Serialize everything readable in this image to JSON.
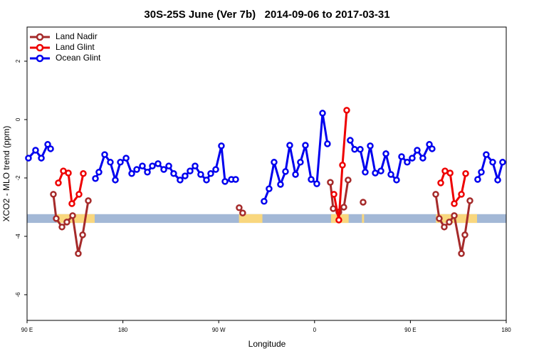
{
  "chart_data": {
    "type": "line",
    "title": "30S-25S June (Ver 7b)   2014-09-06 to 2017-03-31",
    "x_label": "Longitude",
    "y_label": "XCO2 - MLO trend (ppm)",
    "xlim": [
      90,
      540
    ],
    "ylim": [
      -6.88,
      3.17
    ],
    "xticks": [
      {
        "value": 90,
        "label": "90 E"
      },
      180,
      {
        "value": 270,
        "label": "90 W"
      },
      {
        "value": 360,
        "label": "0"
      },
      {
        "value": 450,
        "label": "90 E"
      },
      {
        "value": 540,
        "label": "180"
      }
    ],
    "yticks": [
      2,
      0,
      -2,
      -4,
      -6
    ],
    "legend": "top-left",
    "band": {
      "ylim": [
        -3.24,
        -3.54
      ],
      "color": "#a3b8d6",
      "highlight_color": "#f9d77e",
      "highlights": [
        [
          118,
          153.5
        ],
        [
          289,
          311
        ],
        [
          375.5,
          392
        ],
        [
          404.5,
          406.5
        ],
        [
          474,
          512.6
        ]
      ]
    },
    "series": [
      {
        "name": "Land Nadir",
        "color": "#a52a2a",
        "x": [
          114.7,
          117.4,
          122.8,
          127.4,
          132.8,
          138.1,
          142.2,
          147.5,
          null,
          289.2,
          292.5,
          null,
          374.8,
          377.5,
          382.8,
          387.5,
          391.5,
          null,
          405.6,
          null,
          473.8,
          477.1,
          481.8,
          486.5,
          491.2,
          497.9,
          501.2,
          505.9
        ],
        "values": [
          -2.56,
          -3.39,
          -3.68,
          -3.51,
          -3.29,
          -4.59,
          -3.95,
          -2.78,
          null,
          -3.02,
          -3.2,
          null,
          -2.15,
          -3.05,
          -3.17,
          -3.0,
          -2.07,
          null,
          -2.83,
          null,
          -2.56,
          -3.39,
          -3.68,
          -3.51,
          -3.29,
          -4.59,
          -3.95,
          -2.78
        ]
      },
      {
        "name": "Land Glint",
        "color": "#ee0000",
        "x": [
          119.4,
          124.1,
          128.8,
          132.1,
          138.8,
          142.8,
          null,
          378.2,
          382.8,
          386.2,
          390.2,
          null,
          478.5,
          482.5,
          487.3,
          491.2,
          497.9,
          501.9
        ],
        "values": [
          -2.17,
          -1.76,
          -1.83,
          -2.88,
          -2.56,
          -1.85,
          null,
          -2.56,
          -3.44,
          -1.56,
          0.32,
          null,
          -2.17,
          -1.76,
          -1.83,
          -2.88,
          -2.56,
          -1.85
        ]
      },
      {
        "name": "Ocean Glint",
        "color": "#0000ee",
        "x": [
          91.3,
          98.0,
          103.4,
          109.4,
          112.1,
          null,
          154.2,
          157.5,
          162.9,
          168.2,
          172.9,
          177.6,
          183.0,
          188.3,
          193.0,
          198.3,
          203.0,
          207.7,
          213.0,
          218.4,
          223.1,
          227.7,
          233.7,
          238.4,
          243.1,
          247.8,
          253.1,
          258.5,
          262.5,
          267.2,
          272.5,
          275.9,
          281.9,
          285.9,
          null,
          312.6,
          317.3,
          322.0,
          328.0,
          332.7,
          336.7,
          342.1,
          346.7,
          351.4,
          356.8,
          362.1,
          367.5,
          372.1,
          null,
          393.5,
          397.6,
          402.9,
          407.6,
          412.3,
          417.0,
          422.3,
          427.0,
          431.7,
          437.0,
          441.7,
          447.0,
          451.7,
          456.4,
          461.7,
          467.8,
          470.4,
          null,
          513.2,
          516.6,
          521.2,
          527.3,
          532.0,
          536.6
        ],
        "values": [
          -1.32,
          -1.05,
          -1.32,
          -0.85,
          -1.0,
          null,
          -2.02,
          -1.8,
          -1.2,
          -1.46,
          -2.07,
          -1.46,
          -1.32,
          -1.85,
          -1.71,
          -1.59,
          -1.8,
          -1.59,
          -1.51,
          -1.71,
          -1.59,
          -1.85,
          -2.07,
          -1.93,
          -1.76,
          -1.59,
          -1.88,
          -2.07,
          -1.85,
          -1.71,
          -0.9,
          -2.12,
          -2.05,
          -2.05,
          null,
          -2.8,
          -2.37,
          -1.46,
          -2.22,
          -1.78,
          -0.88,
          -1.88,
          -1.46,
          -0.88,
          -2.05,
          -2.2,
          0.22,
          -0.83,
          null,
          -0.71,
          -1.02,
          -1.02,
          -1.8,
          -0.9,
          -1.83,
          -1.76,
          -1.17,
          -1.88,
          -2.07,
          -1.27,
          -1.46,
          -1.32,
          -1.05,
          -1.32,
          -0.85,
          -1.0,
          null,
          -2.05,
          -1.8,
          -1.2,
          -1.46,
          -2.07,
          -1.46
        ]
      }
    ]
  }
}
